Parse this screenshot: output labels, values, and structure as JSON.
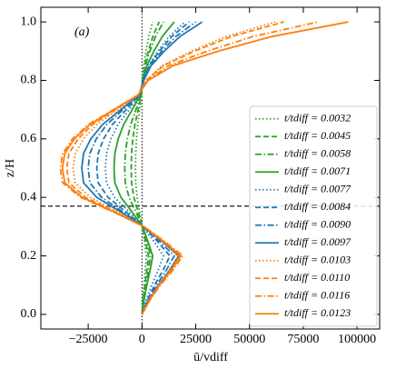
{
  "chart_data": {
    "type": "line",
    "xlabel": "ū/vdiff",
    "ylabel": "z/H",
    "annotation": "(a)",
    "y": [
      0,
      0.05,
      0.1,
      0.15,
      0.2,
      0.25,
      0.3,
      0.35,
      0.4,
      0.45,
      0.5,
      0.55,
      0.6,
      0.65,
      0.7,
      0.75,
      0.8,
      0.85,
      0.9,
      0.95,
      1.0
    ],
    "xlim": [
      -47000,
      110500
    ],
    "ylim": [
      -0.05,
      1.05
    ],
    "xticks": [
      {
        "value": -25000,
        "label": "−25000"
      },
      0,
      25000,
      50000,
      75000,
      100000
    ],
    "yticks": [
      {
        "value": 0,
        "label": "0.0"
      },
      0.2,
      0.4,
      0.6,
      0.8,
      {
        "value": 1,
        "label": "1.0"
      }
    ],
    "reference_lines": {
      "x": 0,
      "y": 0.37
    },
    "legend": "lower right",
    "series": [
      {
        "name": "t/tdiff = 0.0032",
        "color": "#2ca02c",
        "style": "dotted",
        "values": [
          0,
          400,
          900,
          1500,
          2000,
          1100,
          100,
          -1050,
          -2250,
          -2910,
          -3000,
          -2910,
          -2550,
          -1950,
          -1050,
          -150,
          150,
          750,
          1850,
          3150,
          5000
        ]
      },
      {
        "name": "t/tdiff = 0.0045",
        "color": "#2ca02c",
        "style": "dashed",
        "values": [
          0,
          600,
          1350,
          2250,
          3000,
          1650,
          150,
          -1750,
          -3750,
          -4850,
          -5000,
          -4850,
          -4250,
          -3250,
          -1750,
          -250,
          240,
          1200,
          2960,
          5040,
          8000
        ]
      },
      {
        "name": "t/tdiff = 0.0058",
        "color": "#2ca02c",
        "style": "dashdot",
        "values": [
          0,
          800,
          1800,
          3000,
          4000,
          2200,
          200,
          -2800,
          -6000,
          -7760,
          -8000,
          -7760,
          -6800,
          -5200,
          -2800,
          -400,
          300,
          1500,
          3700,
          6300,
          10000
        ]
      },
      {
        "name": "t/tdiff = 0.0071",
        "color": "#2ca02c",
        "style": "solid",
        "values": [
          0,
          1000,
          2250,
          3750,
          5000,
          2750,
          250,
          -4550,
          -9750,
          -12610,
          -13000,
          -12610,
          -11050,
          -8450,
          -4550,
          -650,
          450,
          2250,
          5550,
          9450,
          15000
        ]
      },
      {
        "name": "t/tdiff = 0.0077",
        "color": "#1f77b4",
        "style": "dotted",
        "values": [
          0,
          2000,
          4500,
          7500,
          10000,
          5500,
          500,
          -5950,
          -12750,
          -16490,
          -17000,
          -16490,
          -14450,
          -11050,
          -5950,
          -850,
          600,
          3000,
          7400,
          12600,
          20000
        ]
      },
      {
        "name": "t/tdiff = 0.0084",
        "color": "#1f77b4",
        "style": "dashed",
        "values": [
          0,
          2600,
          5850,
          9750,
          13000,
          7150,
          650,
          -7350,
          -15750,
          -20370,
          -21000,
          -20370,
          -17850,
          -13650,
          -7350,
          -1050,
          660,
          3300,
          8140,
          13860,
          22000
        ]
      },
      {
        "name": "t/tdiff = 0.0090",
        "color": "#1f77b4",
        "style": "dashdot",
        "values": [
          0,
          3000,
          6750,
          11250,
          15000,
          8250,
          750,
          -8750,
          -18750,
          -24250,
          -25000,
          -24250,
          -21250,
          -16250,
          -8750,
          -1250,
          750,
          3750,
          9250,
          15750,
          25000
        ]
      },
      {
        "name": "t/tdiff = 0.0097",
        "color": "#1f77b4",
        "style": "solid",
        "values": [
          0,
          3400,
          7650,
          12750,
          17000,
          9350,
          850,
          -9800,
          -21000,
          -27160,
          -28000,
          -27160,
          -23800,
          -18200,
          -9800,
          -1400,
          840,
          4200,
          10360,
          17640,
          28000
        ]
      },
      {
        "name": "t/tdiff = 0.0103",
        "color": "#ff7f0e",
        "style": "dotted",
        "values": [
          0,
          3400,
          7650,
          12750,
          17000,
          9350,
          850,
          -11200,
          -24000,
          -31040,
          -32000,
          -31040,
          -27200,
          -20800,
          -11200,
          -1600,
          1860,
          9300,
          22940,
          39060,
          62000
        ]
      },
      {
        "name": "t/tdiff = 0.0110",
        "color": "#ff7f0e",
        "style": "dashed",
        "values": [
          0,
          3600,
          8100,
          13500,
          18000,
          9900,
          900,
          -12250,
          -26250,
          -33950,
          -35000,
          -33950,
          -29750,
          -22750,
          -12250,
          -1750,
          1980,
          9900,
          24420,
          41580,
          66000
        ]
      },
      {
        "name": "t/tdiff = 0.0116",
        "color": "#ff7f0e",
        "style": "dashdot",
        "values": [
          0,
          3800,
          8550,
          14250,
          19000,
          10450,
          950,
          -13300,
          -28500,
          -36860,
          -38000,
          -36860,
          -32300,
          -24700,
          -13300,
          -1900,
          2460,
          12300,
          30340,
          51660,
          82000
        ]
      },
      {
        "name": "t/tdiff = 0.0123",
        "color": "#ff7f0e",
        "style": "solid",
        "values": [
          0,
          3600,
          8100,
          13500,
          18000,
          9900,
          900,
          -12950,
          -27750,
          -35890,
          -37000,
          -35890,
          -31450,
          -24050,
          -12950,
          -1850,
          2880,
          14400,
          35520,
          60480,
          96000
        ]
      }
    ]
  }
}
